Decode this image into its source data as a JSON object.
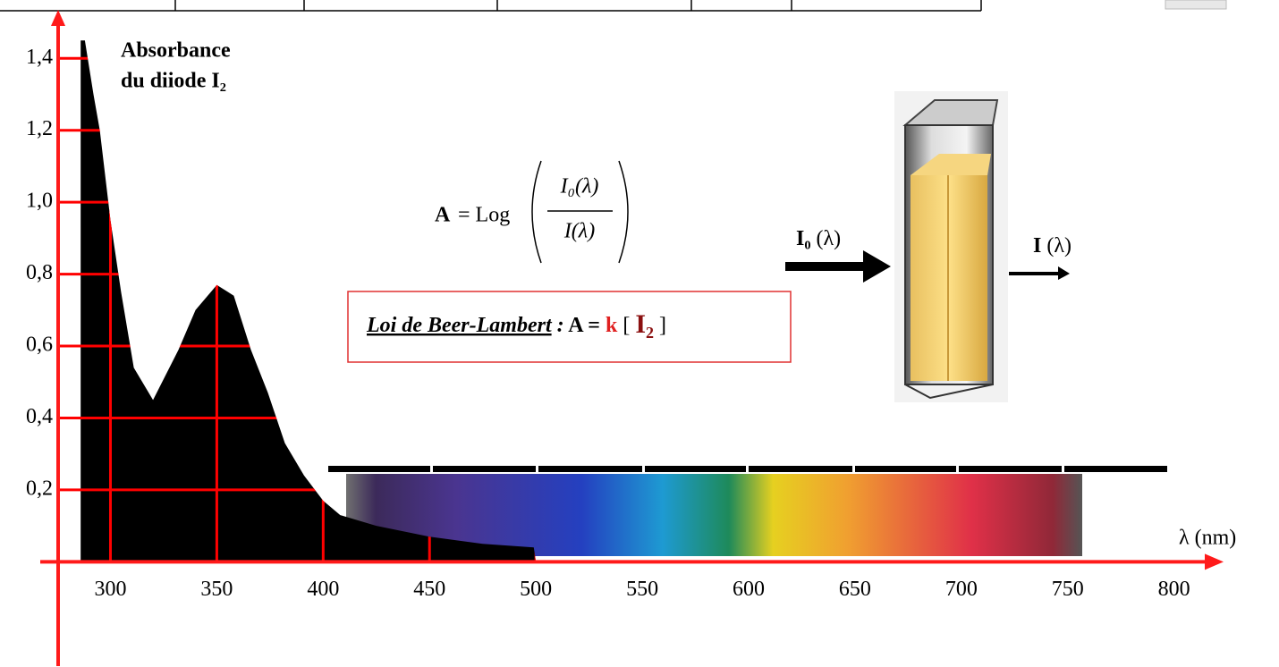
{
  "chart_data": {
    "type": "area",
    "title_lines": [
      "Absorbance",
      "du diiode I₂"
    ],
    "x_label": "λ (nm)",
    "x": [
      286,
      288,
      292,
      295,
      300,
      305,
      311,
      320,
      332,
      340,
      350,
      358,
      366,
      374,
      382,
      391,
      400,
      408,
      425,
      450,
      475,
      499,
      500,
      800
    ],
    "values": [
      1.45,
      1.45,
      1.3,
      1.2,
      0.95,
      0.75,
      0.54,
      0.45,
      0.59,
      0.7,
      0.77,
      0.74,
      0.59,
      0.47,
      0.33,
      0.24,
      0.17,
      0.13,
      0.1,
      0.07,
      0.05,
      0.04,
      0,
      0
    ],
    "color": "#000000",
    "xlim": [
      267,
      822
    ],
    "ylim": [
      -0.29,
      1.52
    ],
    "xticks": [
      300,
      350,
      400,
      450,
      500,
      550,
      600,
      650,
      700,
      750,
      800
    ],
    "yticks": [
      {
        "value": 0.2,
        "label": "0,2"
      },
      {
        "value": 0.4,
        "label": "0,4"
      },
      {
        "value": 0.6,
        "label": "0,6"
      },
      {
        "value": 0.8,
        "label": "0,8"
      },
      {
        "value": 1.0,
        "label": "1,0"
      },
      {
        "value": 1.2,
        "label": "1,2"
      },
      {
        "value": 1.4,
        "label": "1,4"
      }
    ],
    "grid": true,
    "grid_color": "#ff0000",
    "axis_color": "#ff1a1a"
  },
  "formula": {
    "lhs": "A",
    "op": "= Log",
    "numerator": "I₀(λ)",
    "denominator": "I(λ)"
  },
  "law": {
    "name": "Loi de Beer-Lambert",
    "colon": " :",
    "eq": " A = ",
    "k": "k",
    "open": " [ ",
    "species": "I₂",
    "close": " ]"
  },
  "cuvette": {
    "incident_symbol": "I₀",
    "incident_arg": " (λ)",
    "transmitted_symbol": "I",
    "transmitted_arg": " (λ)"
  }
}
